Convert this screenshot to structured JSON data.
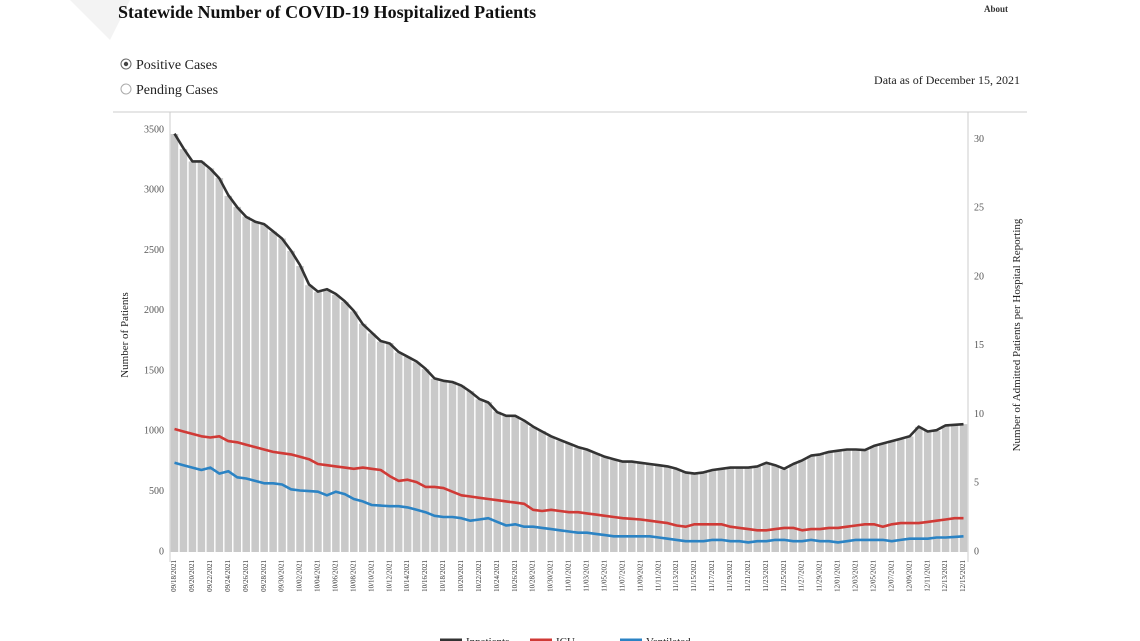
{
  "header": {
    "about": "About"
  },
  "filters": {
    "options": [
      "Positive Cases",
      "Pending Cases"
    ]
  },
  "as_of": "Data as of December 15, 2021",
  "chart_data": {
    "type": "bar-line",
    "title": "Statewide Number of COVID-19 Hospitalized Patients",
    "y_label": "Number of Patients",
    "y2_label": "Number of Admitted Patients per Hospital Reporting",
    "categories": [
      "09/18/2021",
      null,
      "09/20/2021",
      null,
      "09/22/2021",
      null,
      "09/24/2021",
      null,
      "09/26/2021",
      null,
      "09/28/2021",
      null,
      "09/30/2021",
      null,
      "10/02/2021",
      null,
      "10/04/2021",
      null,
      "10/06/2021",
      null,
      "10/08/2021",
      null,
      "10/10/2021",
      null,
      "10/12/2021",
      null,
      "10/14/2021",
      null,
      "10/16/2021",
      null,
      "10/18/2021",
      null,
      "10/20/2021",
      null,
      "10/22/2021",
      null,
      "10/24/2021",
      null,
      "10/26/2021",
      null,
      "10/28/2021",
      null,
      "10/30/2021",
      null,
      "11/01/2021",
      null,
      "11/03/2021",
      null,
      "11/05/2021",
      null,
      "11/07/2021",
      null,
      "11/09/2021",
      null,
      "11/11/2021",
      null,
      "11/13/2021",
      null,
      "11/15/2021",
      null,
      "11/17/2021",
      null,
      "11/19/2021",
      null,
      "11/21/2021",
      null,
      "11/23/2021",
      null,
      "11/25/2021",
      null,
      "11/27/2021",
      null,
      "11/29/2021",
      null,
      "12/01/2021",
      null,
      "12/03/2021",
      null,
      "12/05/2021",
      null,
      "12/07/2021",
      null,
      "12/09/2021",
      null,
      "12/11/2021",
      null,
      "12/13/2021",
      null,
      "12/15/2021"
    ],
    "bars": {
      "axis": "y2",
      "color": "#c9c9c9",
      "values": [
        30.4,
        29.3,
        28.4,
        28.4,
        27.9,
        27.2,
        25.9,
        25.1,
        24.4,
        24.0,
        23.8,
        23.3,
        22.8,
        21.9,
        20.8,
        19.4,
        18.9,
        19.1,
        18.7,
        18.2,
        17.5,
        16.6,
        15.9,
        15.3,
        15.2,
        14.5,
        14.2,
        13.8,
        13.3,
        12.6,
        12.4,
        12.4,
        12.1,
        11.7,
        11.1,
        10.9,
        10.2,
        9.9,
        9.9,
        9.5,
        9.1,
        8.8,
        8.4,
        8.1,
        7.9,
        7.6,
        7.4,
        7.2,
        6.9,
        6.7,
        6.6,
        6.6,
        6.5,
        6.4,
        6.3,
        6.2,
        6.0,
        5.8,
        5.7,
        5.8,
        6.0,
        6.0,
        6.1,
        6.1,
        6.1,
        6.2,
        6.5,
        6.3,
        6.0,
        6.4,
        6.7,
        7.0,
        7.1,
        7.3,
        7.4,
        7.4,
        7.4,
        7.4,
        7.7,
        7.9,
        8.1,
        8.2,
        8.4,
        9.1,
        8.8,
        8.8,
        9.2,
        9.2,
        9.3
      ]
    },
    "series": [
      {
        "name": "Inpatients",
        "color": "#333333",
        "values": [
          3470,
          3350,
          3240,
          3240,
          3180,
          3100,
          2960,
          2860,
          2780,
          2740,
          2720,
          2660,
          2600,
          2500,
          2380,
          2220,
          2160,
          2180,
          2140,
          2080,
          2000,
          1890,
          1820,
          1750,
          1730,
          1660,
          1620,
          1580,
          1520,
          1440,
          1420,
          1410,
          1380,
          1330,
          1270,
          1240,
          1160,
          1130,
          1130,
          1090,
          1040,
          1000,
          960,
          930,
          900,
          870,
          850,
          820,
          790,
          770,
          750,
          750,
          740,
          730,
          720,
          710,
          690,
          660,
          650,
          660,
          680,
          690,
          700,
          700,
          700,
          710,
          740,
          720,
          690,
          730,
          760,
          800,
          810,
          830,
          840,
          850,
          850,
          845,
          880,
          900,
          920,
          940,
          960,
          1040,
          1000,
          1010,
          1050,
          1055,
          1060
        ]
      },
      {
        "name": "ICU",
        "color": "#d03a36",
        "values": [
          1020,
          1000,
          980,
          960,
          950,
          960,
          920,
          910,
          890,
          870,
          850,
          830,
          820,
          810,
          790,
          770,
          730,
          720,
          710,
          700,
          690,
          700,
          690,
          680,
          630,
          590,
          600,
          580,
          540,
          540,
          530,
          500,
          470,
          460,
          450,
          440,
          430,
          420,
          410,
          400,
          350,
          340,
          350,
          340,
          330,
          330,
          320,
          310,
          300,
          290,
          280,
          275,
          270,
          260,
          250,
          240,
          220,
          210,
          230,
          230,
          230,
          230,
          210,
          200,
          190,
          180,
          180,
          190,
          200,
          200,
          180,
          190,
          190,
          200,
          200,
          210,
          220,
          230,
          230,
          210,
          230,
          240,
          240,
          240,
          250,
          260,
          270,
          280,
          280
        ]
      },
      {
        "name": "Ventilated",
        "color": "#2b83c4",
        "values": [
          740,
          720,
          700,
          680,
          700,
          650,
          670,
          620,
          610,
          590,
          570,
          570,
          560,
          520,
          510,
          505,
          500,
          470,
          500,
          480,
          440,
          420,
          390,
          385,
          380,
          380,
          370,
          350,
          330,
          300,
          290,
          290,
          280,
          260,
          270,
          280,
          250,
          220,
          230,
          210,
          210,
          200,
          190,
          180,
          170,
          160,
          160,
          150,
          140,
          130,
          130,
          130,
          130,
          130,
          120,
          110,
          100,
          90,
          90,
          90,
          100,
          100,
          90,
          90,
          80,
          90,
          90,
          100,
          100,
          90,
          90,
          100,
          90,
          90,
          80,
          90,
          100,
          100,
          100,
          100,
          90,
          100,
          110,
          110,
          110,
          120,
          120,
          125,
          130
        ]
      }
    ],
    "ylim": [
      0,
      3650
    ],
    "yticks": [
      0,
      500,
      1000,
      1500,
      2000,
      2500,
      3000,
      3500
    ],
    "y2lim": [
      0,
      32
    ],
    "y2ticks": [
      0,
      5,
      10,
      15,
      20,
      25,
      30
    ]
  }
}
